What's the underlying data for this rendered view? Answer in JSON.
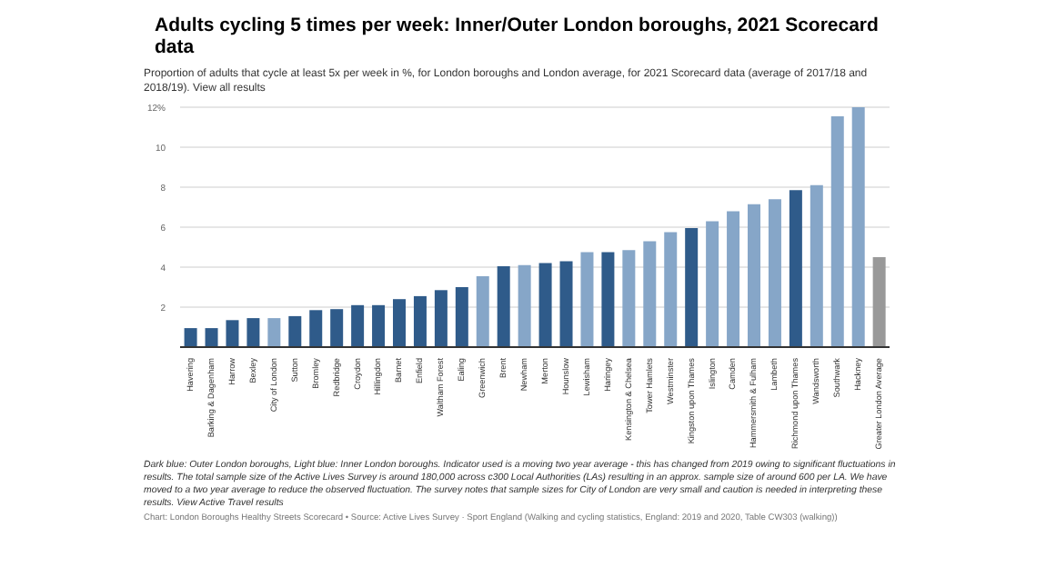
{
  "chart_data": {
    "type": "bar",
    "title": "Adults cycling 5 times per week: Inner/Outer London boroughs, 2021 Scorecard data",
    "subtitle": "Proportion of adults that cycle at least 5x per week in %, for London boroughs and London average, for 2021 Scorecard data (average of 2017/18 and 2018/19). View all results",
    "categories": [
      "Havering",
      "Barking & Dagenham",
      "Harrow",
      "Bexley",
      "City of London",
      "Sutton",
      "Bromley",
      "Redbridge",
      "Croydon",
      "Hillingdon",
      "Barnet",
      "Enfield",
      "Waltham Forest",
      "Ealing",
      "Greenwich",
      "Brent",
      "Newham",
      "Merton",
      "Hounslow",
      "Lewisham",
      "Haringey",
      "Kensington & Chelsea",
      "Tower Hamlets",
      "Westminster",
      "Kingston upon Thames",
      "Islington",
      "Camden",
      "Hammersmith & Fulham",
      "Lambeth",
      "Richmond upon Thames",
      "Wandsworth",
      "Southwark",
      "Hackney",
      "Greater London Average"
    ],
    "values": [
      0.95,
      0.95,
      1.35,
      1.45,
      1.45,
      1.55,
      1.85,
      1.9,
      2.1,
      2.1,
      2.4,
      2.55,
      2.85,
      3.0,
      3.55,
      4.05,
      4.1,
      4.2,
      4.3,
      4.75,
      4.75,
      4.85,
      5.3,
      5.75,
      5.95,
      6.3,
      6.8,
      7.15,
      7.4,
      7.85,
      8.1,
      11.55,
      12.0,
      4.5
    ],
    "colors": [
      "#2f5b8a",
      "#2f5b8a",
      "#2f5b8a",
      "#2f5b8a",
      "#86a6c8",
      "#2f5b8a",
      "#2f5b8a",
      "#2f5b8a",
      "#2f5b8a",
      "#2f5b8a",
      "#2f5b8a",
      "#2f5b8a",
      "#2f5b8a",
      "#2f5b8a",
      "#86a6c8",
      "#2f5b8a",
      "#86a6c8",
      "#2f5b8a",
      "#2f5b8a",
      "#86a6c8",
      "#2f5b8a",
      "#86a6c8",
      "#86a6c8",
      "#86a6c8",
      "#2f5b8a",
      "#86a6c8",
      "#86a6c8",
      "#86a6c8",
      "#86a6c8",
      "#2f5b8a",
      "#86a6c8",
      "#86a6c8",
      "#86a6c8",
      "#999999"
    ],
    "ylim": [
      0,
      12
    ],
    "yticks": [
      2,
      4,
      6,
      8,
      10,
      {
        "value": 12,
        "label": "12%"
      }
    ],
    "grid": "y",
    "legend": false,
    "annotations": [
      "Dark blue: Outer London boroughs, Light blue: Inner London boroughs. Indicator used is a moving two year average - this has changed from 2019 owing to significant fluctuations in results. The total sample size of the Active Lives Survey is around 180,000 across c300 Local Authorities (LAs) resulting in an approx. sample size of around 600 per LA. We have moved to a two year average to reduce the observed fluctuation. The survey notes that sample sizes for City of London are very small and caution is needed in interpreting these results. View Active Travel results",
      "Chart: London Boroughs Healthy Streets Scorecard • Source: Active Lives Survey · Sport England (Walking and cycling statistics, England: 2019 and 2020, Table CW303 (walking))"
    ]
  }
}
